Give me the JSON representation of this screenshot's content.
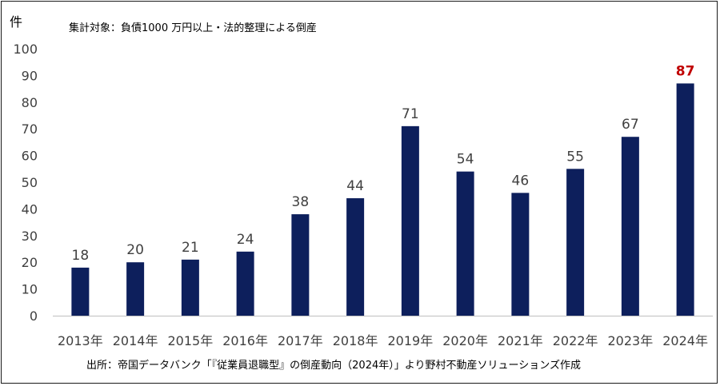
{
  "chart_data": {
    "type": "bar",
    "y_unit": "件",
    "note": "集計対象：負債1000 万円以上・法的整理による倒産",
    "source": "出所：帝国データバンク「『従業員退職型』の倒産動向（2024年）」より野村不動産ソリューションズ作成",
    "categories": [
      "2013年",
      "2014年",
      "2015年",
      "2016年",
      "2017年",
      "2018年",
      "2019年",
      "2020年",
      "2021年",
      "2022年",
      "2023年",
      "2024年"
    ],
    "values": [
      18,
      20,
      21,
      24,
      38,
      44,
      71,
      54,
      46,
      55,
      67,
      87
    ],
    "data_labels": [
      "18",
      "20",
      "21",
      "24",
      "38",
      "44",
      "71",
      "54",
      "46",
      "55",
      "67",
      "87"
    ],
    "highlight_index": 11,
    "ylim": [
      0,
      100
    ],
    "yticks": [
      "0",
      "10",
      "20",
      "30",
      "40",
      "50",
      "60",
      "70",
      "80",
      "90",
      "100"
    ],
    "ytick_values": [
      0,
      10,
      20,
      30,
      40,
      50,
      60,
      70,
      80,
      90,
      100
    ],
    "grid": false,
    "colors": {
      "bar": "#0d1f5c",
      "highlight_label": "#c00000",
      "label": "#404040",
      "axis": "#bfbfbf"
    }
  }
}
